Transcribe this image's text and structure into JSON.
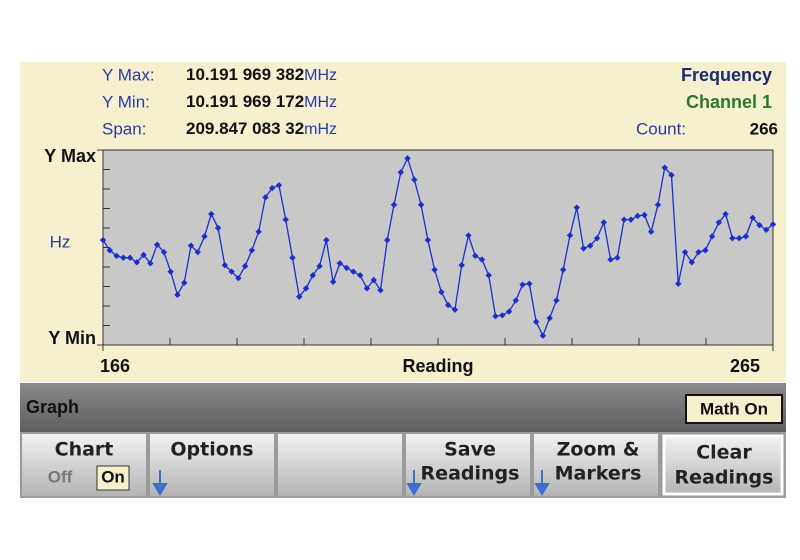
{
  "ui": {
    "stats": [
      {
        "label": "Y Max:",
        "value": "10.191 969 382",
        "unit": "MHz"
      },
      {
        "label": "Y Min:",
        "value": "10.191 969 172",
        "unit": "MHz"
      },
      {
        "label": "Span:",
        "value": "209.847 083 32",
        "unit": "mHz"
      }
    ],
    "measurement": "Frequency",
    "channel": "Channel 1",
    "count_label": "Count:",
    "count": "266",
    "menu_title": "Graph",
    "menu_badge": "Math On",
    "softkeys": {
      "chart": {
        "label": "Chart",
        "off": "Off",
        "on": "On"
      },
      "options": "Options",
      "save": [
        "Save",
        "Readings"
      ],
      "zoom": [
        "Zoom &",
        "Markers"
      ],
      "clear": [
        "Clear",
        "Readings"
      ]
    }
  },
  "chart_data": {
    "type": "line",
    "xlabel": "Reading",
    "ylabel": "Hz",
    "color": "#1b2fd0",
    "xlim": [
      166,
      265
    ],
    "xticks": [
      166,
      265
    ],
    "ylim": [
      10191969.172,
      10191969.382
    ],
    "yticks": [
      {
        "value": 10191969.382,
        "label": "Y Max"
      },
      {
        "value": 10191969.172,
        "label": "Y Min"
      }
    ],
    "x": [
      166,
      167,
      168,
      169,
      170,
      171,
      172,
      173,
      174,
      175,
      176,
      177,
      178,
      179,
      180,
      181,
      182,
      183,
      184,
      185,
      186,
      187,
      188,
      189,
      190,
      191,
      192,
      193,
      194,
      195,
      196,
      197,
      198,
      199,
      200,
      201,
      202,
      203,
      204,
      205,
      206,
      207,
      208,
      209,
      210,
      211,
      212,
      213,
      214,
      215,
      216,
      217,
      218,
      219,
      220,
      221,
      222,
      223,
      224,
      225,
      226,
      227,
      228,
      229,
      230,
      231,
      232,
      233,
      234,
      235,
      236,
      237,
      238,
      239,
      240,
      241,
      242,
      243,
      244,
      245,
      246,
      247,
      248,
      249,
      250,
      251,
      252,
      253,
      254,
      255,
      256,
      257,
      258,
      259,
      260,
      261,
      262,
      263,
      264,
      265
    ],
    "values": [
      10191969.285,
      10191969.274,
      10191969.268,
      10191969.266,
      10191969.266,
      10191969.261,
      10191969.269,
      10191969.26,
      10191969.28,
      10191969.272,
      10191969.251,
      10191969.226,
      10191969.239,
      10191969.279,
      10191969.272,
      10191969.289,
      10191969.313,
      10191969.298,
      10191969.258,
      10191969.251,
      10191969.244,
      10191969.257,
      10191969.274,
      10191969.294,
      10191969.331,
      10191969.341,
      10191969.344,
      10191969.307,
      10191969.266,
      10191969.224,
      10191969.233,
      10191969.247,
      10191969.257,
      10191969.285,
      10191969.24,
      10191969.26,
      10191969.255,
      10191969.251,
      10191969.247,
      10191969.233,
      10191969.242,
      10191969.231,
      10191969.285,
      10191969.323,
      10191969.358,
      10191969.373,
      10191969.35,
      10191969.323,
      10191969.285,
      10191969.253,
      10191969.229,
      10191969.215,
      10191969.21,
      10191969.258,
      10191969.29,
      10191969.268,
      10191969.264,
      10191969.247,
      10191969.203,
      10191969.204,
      10191969.208,
      10191969.22,
      10191969.237,
      10191969.238,
      10191969.197,
      10191969.182,
      10191969.201,
      10191969.22,
      10191969.253,
      10191969.29,
      10191969.32,
      10191969.276,
      10191969.279,
      10191969.287,
      10191969.304,
      10191969.264,
      10191969.266,
      10191969.307,
      10191969.307,
      10191969.311,
      10191969.312,
      10191969.294,
      10191969.323,
      10191969.363,
      10191969.355,
      10191969.238,
      10191969.272,
      10191969.261,
      10191969.272,
      10191969.274,
      10191969.289,
      10191969.304,
      10191969.313,
      10191969.287,
      10191969.287,
      10191969.289,
      10191969.309,
      10191969.301,
      10191969.296,
      10191969.302
    ]
  }
}
